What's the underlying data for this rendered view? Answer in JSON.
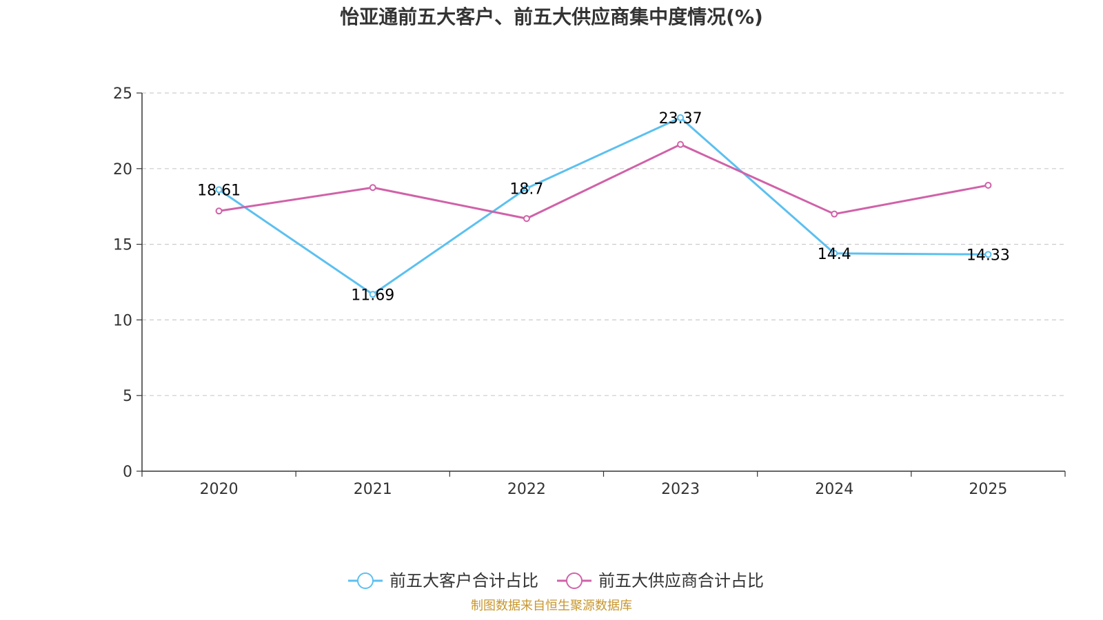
{
  "chart_data": {
    "type": "line",
    "title": "怡亚通前五大客户、前五大供应商集中度情况(%)",
    "categories": [
      "2020",
      "2021",
      "2022",
      "2023",
      "2024",
      "2025"
    ],
    "ylim": [
      0,
      25
    ],
    "yticks": [
      0,
      5,
      10,
      15,
      20,
      25
    ],
    "grid": true,
    "legend_position": "bottom",
    "series": [
      {
        "name": "前五大客户合计占比",
        "color": "#5bc0f0",
        "values": [
          18.61,
          11.69,
          18.7,
          23.37,
          14.4,
          14.33
        ],
        "labels": [
          "18.61",
          "11.69",
          "18.7",
          "23.37",
          "14.4",
          "14.33"
        ],
        "show_labels": true
      },
      {
        "name": "前五大供应商合计占比",
        "color": "#d062a8",
        "values": [
          17.2,
          18.75,
          16.7,
          21.6,
          17.0,
          18.9
        ],
        "show_labels": false
      }
    ]
  },
  "source_text": "制图数据来自恒生聚源数据库"
}
